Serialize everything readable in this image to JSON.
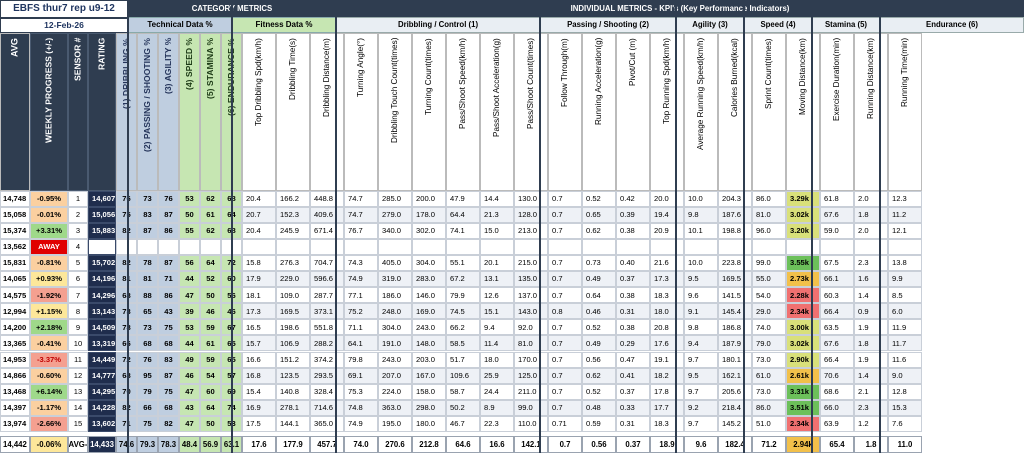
{
  "sheet_title": "EBFS thur7 rep u9-12",
  "sheet_date": "12-Feb-26",
  "groups": {
    "category_metrics": "CATEGORY  METRICS",
    "individual_metrics": "INDIVIDUAL METRICS - KPI's (Key Performance Indicators)",
    "technical": "Technical Data %",
    "fitness": "Fitness Data %",
    "dribbling": "Dribbling / Control (1)",
    "passing": "Passing / Shooting (2)",
    "agility": "Agility (3)",
    "speed": "Speed (4)",
    "stamina": "Stamina (5)",
    "endurance": "Endurance (6)"
  },
  "columns": [
    "AVG",
    "WEEKLY PROGRESS (+/-)",
    "SENSOR #",
    "RATING",
    "(1) DRIBBLING %",
    "(2) PASSING / SHOOTING %",
    "(3) AGILITY %",
    "(4) SPEED %",
    "(5) STAMINA %",
    "(6) ENDURANCE %",
    "Top Dribbling Spd(km/h)",
    "Dribbling Time(s)",
    "Dribbling Distance(m)",
    "Turning Angle(°)",
    "Dribbling Touch Count(times)",
    "Turning Count(times)",
    "Pass/Shoot Speed(km/h)",
    "Pass/Shoot Acceleration(g)",
    "Pass/Shoot Count(times)",
    "Follow Through(m)",
    "Running Acceleration(g)",
    "Pivot/Cut (m)",
    "Top Running Spd(km/h)",
    "Average Running Speed(km/h)",
    "Calories Burned(kcal)",
    "Sprint Count(times)",
    "Moving Distance(km)",
    "Exercise Duration(min)",
    "Running Distance(km)",
    "Running Time(min)"
  ],
  "rows": [
    [
      "14,748",
      "-0.95%",
      "1",
      "14,607",
      "76",
      "73",
      "76",
      "53",
      "62",
      "68",
      "20.4",
      "166.2",
      "448.8",
      "74.7",
      "285.0",
      "200.0",
      "47.9",
      "14.4",
      "130.0",
      "0.7",
      "0.52",
      "0.42",
      "20.0",
      "10.0",
      "204.3",
      "86.0",
      "3.29k",
      "61.8",
      "2.0",
      "12.3"
    ],
    [
      "15,058",
      "-0.01%",
      "2",
      "15,056",
      "75",
      "83",
      "87",
      "50",
      "61",
      "64",
      "20.7",
      "152.3",
      "409.6",
      "74.7",
      "279.0",
      "178.0",
      "64.4",
      "21.3",
      "128.0",
      "0.7",
      "0.65",
      "0.39",
      "19.4",
      "9.8",
      "187.6",
      "81.0",
      "3.02k",
      "67.6",
      "1.8",
      "11.2"
    ],
    [
      "15,374",
      "+3.31%",
      "3",
      "15,883",
      "82",
      "87",
      "86",
      "55",
      "62",
      "68",
      "20.4",
      "245.9",
      "671.4",
      "76.7",
      "340.0",
      "302.0",
      "74.1",
      "15.0",
      "213.0",
      "0.7",
      "0.62",
      "0.38",
      "20.9",
      "10.1",
      "198.8",
      "96.0",
      "3.20k",
      "59.0",
      "2.0",
      "12.1"
    ],
    [
      "13,562",
      "AWAY",
      "4",
      "",
      "",
      "",
      "",
      "",
      "",
      "",
      "",
      "",
      "",
      "",
      "",
      "",
      "",
      "",
      "",
      "",
      "",
      "",
      "",
      "",
      "",
      "",
      "",
      "",
      "",
      ""
    ],
    [
      "15,831",
      "-0.81%",
      "5",
      "15,702",
      "82",
      "78",
      "87",
      "56",
      "64",
      "72",
      "15.8",
      "276.3",
      "704.7",
      "74.3",
      "405.0",
      "304.0",
      "55.1",
      "20.1",
      "215.0",
      "0.7",
      "0.73",
      "0.40",
      "21.6",
      "10.0",
      "223.8",
      "99.0",
      "3.55k",
      "67.5",
      "2.3",
      "13.8"
    ],
    [
      "14,065",
      "+0.93%",
      "6",
      "14,196",
      "81",
      "81",
      "71",
      "44",
      "52",
      "60",
      "17.9",
      "229.0",
      "596.6",
      "74.9",
      "319.0",
      "283.0",
      "67.2",
      "13.1",
      "135.0",
      "0.7",
      "0.49",
      "0.37",
      "17.3",
      "9.5",
      "169.5",
      "55.0",
      "2.73k",
      "66.1",
      "1.6",
      "9.9"
    ],
    [
      "14,575",
      "-1.92%",
      "7",
      "14,296",
      "68",
      "88",
      "86",
      "47",
      "50",
      "56",
      "18.1",
      "109.0",
      "287.7",
      "77.1",
      "186.0",
      "146.0",
      "79.9",
      "12.6",
      "137.0",
      "0.7",
      "0.64",
      "0.38",
      "18.3",
      "9.6",
      "141.5",
      "54.0",
      "2.28k",
      "60.3",
      "1.4",
      "8.5"
    ],
    [
      "12,994",
      "+1.15%",
      "8",
      "13,143",
      "73",
      "65",
      "43",
      "39",
      "46",
      "46",
      "17.3",
      "169.5",
      "373.1",
      "75.2",
      "248.0",
      "169.0",
      "74.5",
      "15.1",
      "143.0",
      "0.8",
      "0.46",
      "0.31",
      "18.0",
      "9.1",
      "145.4",
      "29.0",
      "2.34k",
      "66.4",
      "0.9",
      "6.0"
    ],
    [
      "14,200",
      "+2.18%",
      "9",
      "14,509",
      "78",
      "73",
      "75",
      "53",
      "59",
      "67",
      "16.5",
      "198.6",
      "551.8",
      "71.1",
      "304.0",
      "243.0",
      "66.2",
      "9.4",
      "92.0",
      "0.7",
      "0.52",
      "0.38",
      "20.8",
      "9.8",
      "186.8",
      "74.0",
      "3.00k",
      "63.5",
      "1.9",
      "11.9"
    ],
    [
      "13,365",
      "-0.41%",
      "10",
      "13,319",
      "66",
      "68",
      "68",
      "44",
      "61",
      "65",
      "15.7",
      "106.9",
      "288.2",
      "64.1",
      "191.0",
      "148.0",
      "58.5",
      "11.4",
      "81.0",
      "0.7",
      "0.49",
      "0.29",
      "17.6",
      "9.4",
      "187.9",
      "79.0",
      "3.02k",
      "67.6",
      "1.8",
      "11.7"
    ],
    [
      "14,953",
      "-3.37%",
      "11",
      "14,449",
      "72",
      "76",
      "83",
      "49",
      "59",
      "65",
      "16.6",
      "151.2",
      "374.2",
      "79.8",
      "243.0",
      "203.0",
      "51.7",
      "18.0",
      "170.0",
      "0.7",
      "0.56",
      "0.47",
      "19.1",
      "9.7",
      "180.1",
      "73.0",
      "2.90k",
      "66.4",
      "1.9",
      "11.6"
    ],
    [
      "14,866",
      "-0.60%",
      "12",
      "14,777",
      "68",
      "95",
      "87",
      "46",
      "54",
      "57",
      "16.8",
      "123.5",
      "293.5",
      "69.1",
      "207.0",
      "167.0",
      "109.6",
      "25.9",
      "125.0",
      "0.7",
      "0.62",
      "0.41",
      "18.2",
      "9.5",
      "162.1",
      "61.0",
      "2.61k",
      "70.6",
      "1.4",
      "9.0"
    ],
    [
      "13,468",
      "+6.14%",
      "13",
      "14,295",
      "70",
      "79",
      "75",
      "47",
      "60",
      "69",
      "15.4",
      "140.8",
      "328.4",
      "75.3",
      "224.0",
      "158.0",
      "58.7",
      "24.4",
      "211.0",
      "0.7",
      "0.52",
      "0.37",
      "17.8",
      "9.7",
      "205.6",
      "73.0",
      "3.31k",
      "68.6",
      "2.1",
      "12.8"
    ],
    [
      "14,397",
      "-1.17%",
      "14",
      "14,228",
      "82",
      "66",
      "68",
      "43",
      "64",
      "74",
      "16.9",
      "278.1",
      "714.6",
      "74.8",
      "363.0",
      "298.0",
      "50.2",
      "8.9",
      "99.0",
      "0.7",
      "0.48",
      "0.33",
      "17.7",
      "9.2",
      "218.4",
      "86.0",
      "3.51k",
      "66.0",
      "2.3",
      "15.3"
    ],
    [
      "13,974",
      "-2.66%",
      "15",
      "13,602",
      "71",
      "75",
      "82",
      "47",
      "50",
      "53",
      "17.5",
      "144.1",
      "365.0",
      "74.9",
      "195.0",
      "180.0",
      "46.7",
      "22.3",
      "110.0",
      "0.71",
      "0.59",
      "0.31",
      "18.3",
      "9.7",
      "145.2",
      "51.0",
      "2.34k",
      "63.9",
      "1.2",
      "7.6"
    ]
  ],
  "footer": [
    "14,442",
    "-0.06%",
    "AVG-",
    "14,433",
    "74.6",
    "79.3",
    "78.3",
    "48.4",
    "56.9",
    "63.1",
    "17.6",
    "177.9",
    "457.7",
    "74.0",
    "270.6",
    "212.8",
    "64.6",
    "16.6",
    "142.1",
    "0.7",
    "0.56",
    "0.37",
    "18.9",
    "9.6",
    "182.4",
    "71.2",
    "2.94k",
    "65.4",
    "1.8",
    "11.0"
  ],
  "colors": {
    "header_dark": "#2f3d50",
    "technical_header": "#bfcee0",
    "fitness_header": "#c6e6b2",
    "rating_column": "#1f2d4d",
    "away_badge": "#e00000",
    "progress_red": "#f4a090",
    "progress_yellow": "#fde79a",
    "progress_green": "#9fd98a",
    "moving_high": "#6cc05a",
    "moving_mid": "#f2c04a",
    "moving_low": "#f07070"
  }
}
